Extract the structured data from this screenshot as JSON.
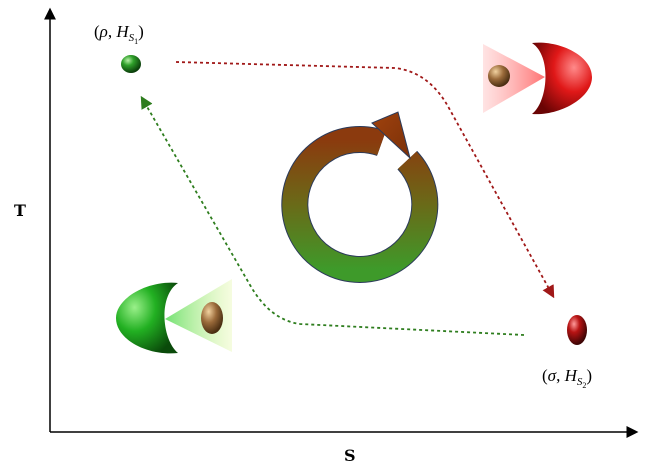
{
  "axes": {
    "x_label": "S",
    "y_label": "T"
  },
  "states": {
    "top_left": {
      "state_symbol": "ρ",
      "hamiltonian_symbol": "H",
      "subsystem_symbol": "S",
      "subsystem_index": "1"
    },
    "bottom_right": {
      "state_symbol": "σ",
      "hamiltonian_symbol": "H",
      "subsystem_symbol": "S",
      "subsystem_index": "2"
    }
  },
  "colors": {
    "green_path": "#2e7d1e",
    "red_path": "#a01818",
    "green_state": "#1f8a1f",
    "red_state": "#b01010",
    "cycle_start": "#8b3a0e",
    "cycle_end": "#3e9a2a"
  },
  "icons": [
    "green-sphere-icon",
    "red-sphere-icon",
    "red-cone-emitter-icon",
    "green-cone-emitter-icon",
    "cycle-arrow-icon"
  ]
}
